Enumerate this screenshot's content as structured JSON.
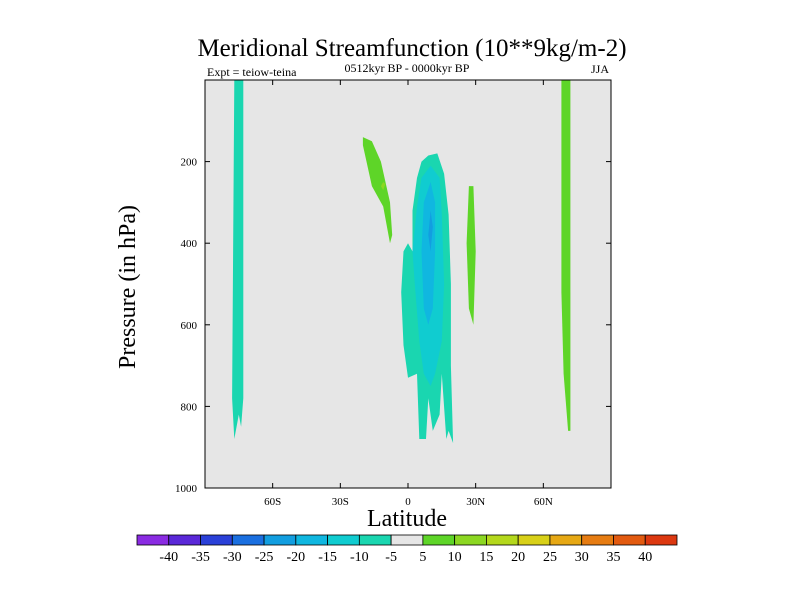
{
  "chart_data": {
    "type": "contour",
    "title": "Meridional Streamfunction (10**9kg/m-2)",
    "left_label": "Expt = teiow-teina",
    "center_label": "0512kyr BP - 0000kyr BP",
    "right_label": "JJA",
    "xlabel": "Latitude",
    "ylabel": "Pressure (in hPa)",
    "xlim": [
      -90,
      90
    ],
    "ylim": [
      0,
      1000
    ],
    "y_inverted": true,
    "x_ticks": [
      {
        "value": -60,
        "label": "60S"
      },
      {
        "value": -30,
        "label": "30S"
      },
      {
        "value": 0,
        "label": "0"
      },
      {
        "value": 30,
        "label": "30N"
      },
      {
        "value": 60,
        "label": "60N"
      }
    ],
    "y_ticks": [
      {
        "value": 200,
        "label": "200"
      },
      {
        "value": 400,
        "label": "400"
      },
      {
        "value": 600,
        "label": "600"
      },
      {
        "value": 800,
        "label": "800"
      },
      {
        "value": 1000,
        "label": "1000"
      }
    ],
    "colorbar": {
      "labels": [
        "-40",
        "-35",
        "-30",
        "-25",
        "-20",
        "-15",
        "-10",
        "-5",
        "5",
        "10",
        "15",
        "20",
        "25",
        "30",
        "35",
        "40"
      ],
      "colors": [
        "#8a2be2",
        "#5a28d8",
        "#2a40d8",
        "#1a6fe0",
        "#129ee0",
        "#10b7e0",
        "#10ccd0",
        "#1ad6b0",
        "#e6e6e6",
        "#5ed528",
        "#8cd722",
        "#b4d81c",
        "#d8d018",
        "#e6a814",
        "#e67c12",
        "#e25a10",
        "#dc3810"
      ]
    },
    "regions": [
      {
        "name": "contour-region-sh-negative-column",
        "bin": "-10 to -5",
        "color": "#1ad6b0",
        "points": [
          [
            -77,
            0
          ],
          [
            -73,
            0
          ],
          [
            -73,
            780
          ],
          [
            -74,
            850
          ],
          [
            -75,
            820
          ],
          [
            -77,
            880
          ],
          [
            -78,
            780
          ]
        ]
      },
      {
        "name": "contour-region-nh-positive-column",
        "bin": "5 to 10",
        "color": "#5ed528",
        "points": [
          [
            68,
            0
          ],
          [
            72,
            0
          ],
          [
            72,
            860
          ],
          [
            71,
            860
          ],
          [
            69,
            720
          ],
          [
            68,
            520
          ]
        ]
      },
      {
        "name": "contour-region-sh-upper-positive",
        "bin": "5 to 10",
        "color": "#5ed528",
        "points": [
          [
            -20,
            140
          ],
          [
            -16,
            150
          ],
          [
            -12,
            200
          ],
          [
            -8,
            300
          ],
          [
            -7,
            380
          ],
          [
            -8,
            400
          ],
          [
            -11,
            310
          ],
          [
            -16,
            260
          ],
          [
            -20,
            160
          ]
        ]
      },
      {
        "name": "contour-region-upper-positive-core",
        "bin": "10 to 15",
        "color": "#8cd722",
        "points": [
          [
            -11,
            250
          ],
          [
            -10,
            255
          ],
          [
            -11,
            270
          ],
          [
            -12,
            260
          ]
        ]
      },
      {
        "name": "contour-region-nh-positive-blob",
        "bin": "5 to 10",
        "color": "#5ed528",
        "points": [
          [
            27,
            260
          ],
          [
            29,
            260
          ],
          [
            30,
            420
          ],
          [
            29,
            600
          ],
          [
            27,
            560
          ],
          [
            26,
            400
          ]
        ]
      },
      {
        "name": "contour-region-tropical-negative-outer",
        "bin": "-10 to -5",
        "color": "#1ad6b0",
        "points": [
          [
            9,
            185
          ],
          [
            13,
            180
          ],
          [
            16,
            230
          ],
          [
            18,
            330
          ],
          [
            19,
            500
          ],
          [
            19,
            700
          ],
          [
            20,
            890
          ],
          [
            18,
            860
          ],
          [
            17,
            880
          ],
          [
            15,
            720
          ],
          [
            14,
            820
          ],
          [
            11,
            860
          ],
          [
            9,
            780
          ],
          [
            8,
            880
          ],
          [
            5,
            880
          ],
          [
            4,
            720
          ],
          [
            0,
            730
          ],
          [
            -2,
            650
          ],
          [
            -3,
            520
          ],
          [
            -2,
            420
          ],
          [
            0,
            400
          ],
          [
            2,
            420
          ],
          [
            2,
            320
          ],
          [
            4,
            240
          ],
          [
            6,
            200
          ]
        ]
      },
      {
        "name": "contour-region-tropical-negative-mid",
        "bin": "-15 to -10",
        "color": "#10ccd0",
        "points": [
          [
            10,
            210
          ],
          [
            14,
            240
          ],
          [
            15,
            330
          ],
          [
            16,
            500
          ],
          [
            15,
            640
          ],
          [
            12,
            720
          ],
          [
            10,
            750
          ],
          [
            7,
            720
          ],
          [
            5,
            640
          ],
          [
            3,
            500
          ],
          [
            2,
            420
          ],
          [
            4,
            310
          ],
          [
            6,
            240
          ]
        ]
      },
      {
        "name": "contour-region-tropical-negative-inner",
        "bin": "-20 to -15",
        "color": "#10b7e0",
        "points": [
          [
            10,
            250
          ],
          [
            12,
            300
          ],
          [
            12,
            420
          ],
          [
            11,
            560
          ],
          [
            9,
            600
          ],
          [
            7,
            560
          ],
          [
            6,
            420
          ],
          [
            7,
            300
          ]
        ]
      },
      {
        "name": "contour-region-tropical-negative-core",
        "bin": "-25 to -20",
        "color": "#129ee0",
        "points": [
          [
            10,
            320
          ],
          [
            11,
            360
          ],
          [
            10,
            420
          ],
          [
            9,
            380
          ]
        ]
      }
    ]
  }
}
